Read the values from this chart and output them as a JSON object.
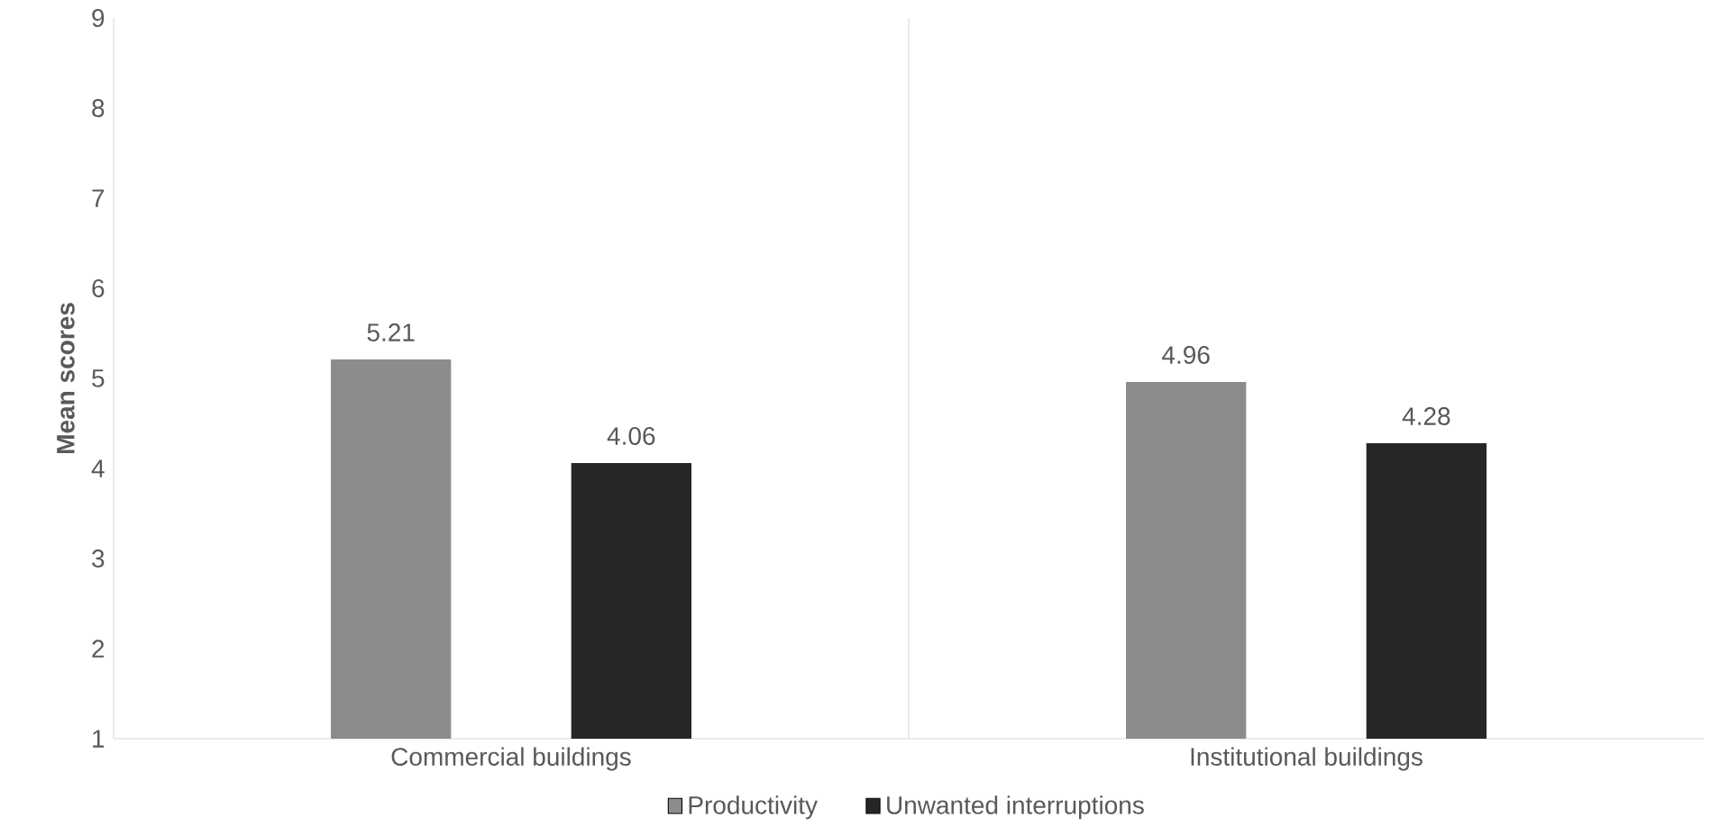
{
  "chart_data": {
    "type": "bar",
    "ylabel": "Mean scores",
    "categories": [
      "Commercial buildings",
      "Institutional buildings"
    ],
    "series": [
      {
        "name": "Productivity",
        "color": "#8c8c8c",
        "values": [
          5.21,
          4.96
        ]
      },
      {
        "name": "Unwanted interruptions",
        "color": "#262626",
        "values": [
          4.06,
          4.28
        ]
      }
    ],
    "ylim": [
      1,
      9
    ],
    "yticks": [
      1,
      2,
      3,
      4,
      5,
      6,
      7,
      8,
      9
    ],
    "grid": "x",
    "legend": "bottom",
    "data_labels": true
  }
}
